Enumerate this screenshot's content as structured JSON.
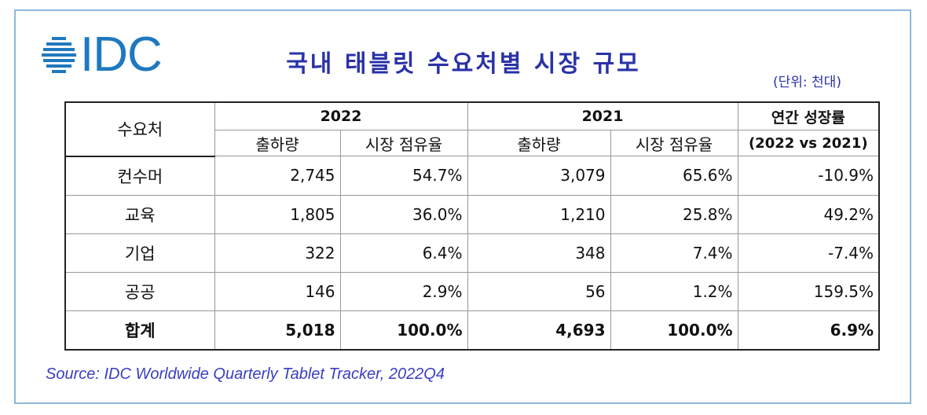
{
  "logo": {
    "text": "IDC"
  },
  "title": "국내 태블릿 수요처별 시장 규모",
  "unit_note": "(단위: 천대)",
  "table": {
    "corner_header": "수요처",
    "years": [
      "2022",
      "2021"
    ],
    "sub_headers": [
      "출하량",
      "시장 점유율"
    ],
    "growth_header": "연간 성장률",
    "growth_sub_header": "(2022 vs 2021)",
    "rows": [
      {
        "category": "컨수머",
        "ship_2022": "2,745",
        "share_2022": "54.7%",
        "ship_2021": "3,079",
        "share_2021": "65.6%",
        "growth": "-10.9%"
      },
      {
        "category": "교육",
        "ship_2022": "1,805",
        "share_2022": "36.0%",
        "ship_2021": "1,210",
        "share_2021": "25.8%",
        "growth": "49.2%"
      },
      {
        "category": "기업",
        "ship_2022": "322",
        "share_2022": "6.4%",
        "ship_2021": "348",
        "share_2021": "7.4%",
        "growth": "-7.4%"
      },
      {
        "category": "공공",
        "ship_2022": "146",
        "share_2022": "2.9%",
        "ship_2021": "56",
        "share_2021": "1.2%",
        "growth": "159.5%"
      }
    ],
    "total": {
      "category": "합계",
      "ship_2022": "5,018",
      "share_2022": "100.0%",
      "ship_2021": "4,693",
      "share_2021": "100.0%",
      "growth": "6.9%"
    }
  },
  "source": "Source: IDC Worldwide Quarterly Tablet Tracker, 2022Q4",
  "colors": {
    "logo_blue": "#1f79bf",
    "title_blue": "#2a32a8",
    "source_blue": "#3a3ec2",
    "frame_border": "#8fb7dc"
  }
}
